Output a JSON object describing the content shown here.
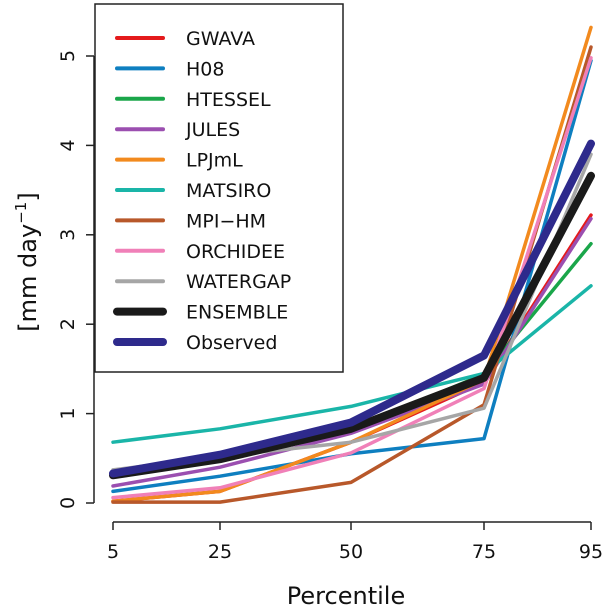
{
  "chart_data": {
    "type": "line",
    "xlabel": "Percentile",
    "ylabel_parts": {
      "pre": "[mm  day",
      "sup": "−1",
      "post": "]"
    },
    "x": [
      5,
      25,
      50,
      75,
      95
    ],
    "x_tick_labels": [
      "5",
      "25",
      "50",
      "75",
      "95"
    ],
    "y_ticks": [
      0,
      1,
      2,
      3,
      4,
      5
    ],
    "y_tick_labels": [
      "0",
      "1",
      "2",
      "3",
      "4",
      "5"
    ],
    "ylim": [
      0,
      5.4
    ],
    "grid": false,
    "legend_position": "top-left",
    "series": [
      {
        "name": "GWAVA",
        "color": "#e41a1c",
        "values": [
          0.02,
          0.13,
          0.68,
          1.35,
          3.22
        ]
      },
      {
        "name": "H08",
        "color": "#0e7fc0",
        "values": [
          0.13,
          0.3,
          0.55,
          0.72,
          4.95
        ]
      },
      {
        "name": "HTESSEL",
        "color": "#1aa64a",
        "values": [
          0.3,
          0.5,
          0.82,
          1.44,
          2.9
        ]
      },
      {
        "name": "JULES",
        "color": "#9b4fb0",
        "values": [
          0.19,
          0.4,
          0.78,
          1.33,
          3.18
        ]
      },
      {
        "name": "LPJmL",
        "color": "#f28a1e",
        "values": [
          0.02,
          0.13,
          0.68,
          1.38,
          5.32
        ]
      },
      {
        "name": "MATSIRO",
        "color": "#1ab5a8",
        "values": [
          0.68,
          0.83,
          1.08,
          1.45,
          2.43
        ]
      },
      {
        "name": "MPI−HM",
        "color": "#b8582a",
        "values": [
          0.01,
          0.01,
          0.23,
          1.1,
          5.1
        ]
      },
      {
        "name": "ORCHIDEE",
        "color": "#f080b8",
        "values": [
          0.06,
          0.17,
          0.56,
          1.28,
          4.98
        ]
      },
      {
        "name": "WATERGAP",
        "color": "#a6a6a6",
        "values": [
          0.37,
          0.52,
          0.68,
          1.06,
          3.9
        ]
      },
      {
        "name": "ENSEMBLE",
        "color": "#1a1a1a",
        "values": [
          0.31,
          0.49,
          0.83,
          1.4,
          3.66
        ]
      },
      {
        "name": "Observed",
        "color": "#2e2a8c",
        "values": [
          0.33,
          0.54,
          0.9,
          1.65,
          4.02
        ]
      }
    ]
  }
}
